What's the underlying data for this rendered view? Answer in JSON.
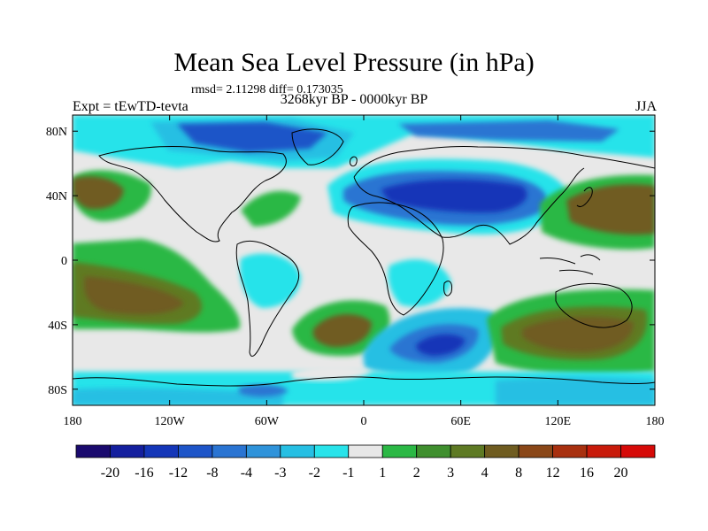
{
  "title": "Mean Sea Level Pressure (in hPa)",
  "stats": "rmsd= 2.11298 diff= 0.173035",
  "experiment": "Expt = tEwTD-tevta",
  "period": "3268kyr BP - 0000kyr BP",
  "season": "JJA",
  "lat_ticks": [
    "80N",
    "40N",
    "0",
    "40S",
    "80S"
  ],
  "lon_ticks": [
    "180",
    "120W",
    "60W",
    "0",
    "60E",
    "120E",
    "180"
  ],
  "colorbar": {
    "labels": [
      "-20",
      "-16",
      "-12",
      "-8",
      "-4",
      "-3",
      "-2",
      "-1",
      "1",
      "2",
      "3",
      "4",
      "8",
      "12",
      "16",
      "20"
    ],
    "colors": [
      "#1a0a6e",
      "#141f9e",
      "#1436b8",
      "#1e55c8",
      "#2a74d2",
      "#2f93da",
      "#26bfe3",
      "#28e3ea",
      "#e8e8e8",
      "#2bb845",
      "#3f8f2e",
      "#5e7a24",
      "#6f5c20",
      "#8a4718",
      "#a8300f",
      "#c81a0a",
      "#d60a08"
    ]
  },
  "colors": {
    "land_outline": "#000000",
    "neutral": "#e8e8e8"
  }
}
